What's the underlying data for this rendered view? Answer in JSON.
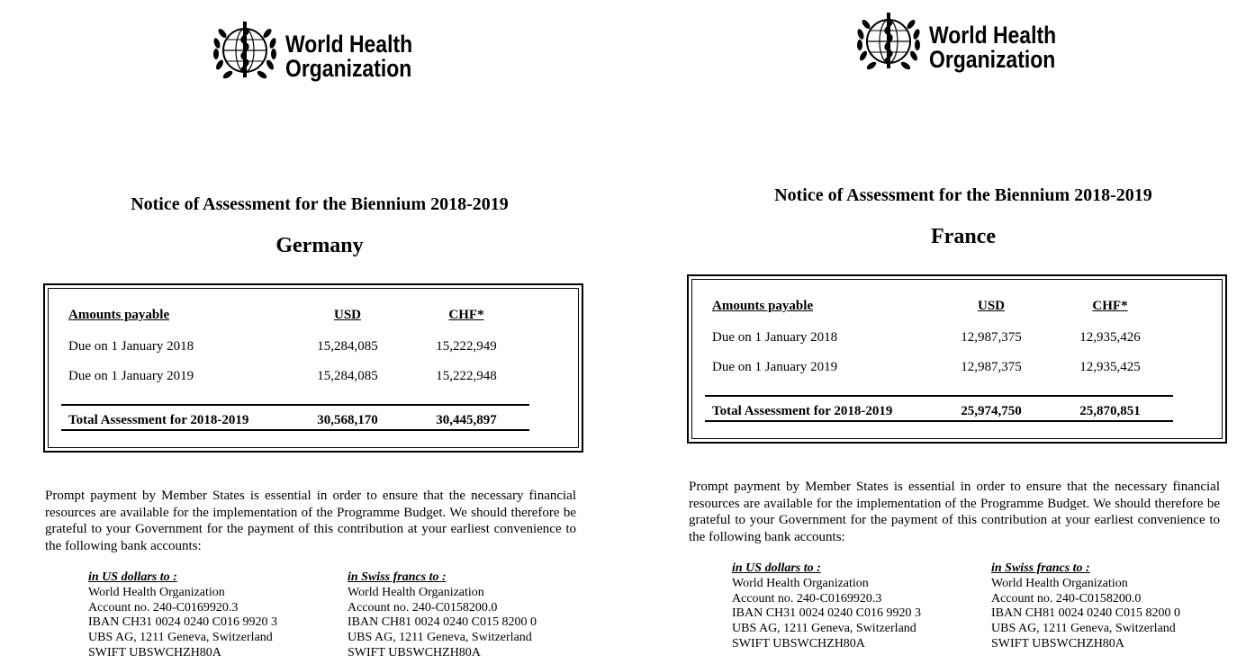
{
  "documents": [
    {
      "logo": {
        "line1": "World Health",
        "line2": "Organization"
      },
      "title": "Notice of Assessment for the Biennium 2018-2019",
      "country": "Germany",
      "table": {
        "header": [
          "Amounts payable",
          "USD",
          "CHF*"
        ],
        "rows": [
          [
            "Due on 1 January 2018",
            "15,284,085",
            "15,222,949"
          ],
          [
            "Due on 1 January 2019",
            "15,284,085",
            "15,222,948"
          ]
        ],
        "total": [
          "Total Assessment for 2018-2019",
          "30,568,170",
          "30,445,897"
        ]
      },
      "paragraph": "Prompt payment by Member States is essential in order to ensure that the necessary financial resources are available for the implementation of the Programme Budget. We should therefore be grateful to your Government for the payment of this contribution at your earliest convenience to the following bank accounts:",
      "accounts": [
        {
          "heading": "in US dollars to :",
          "lines": [
            "World Health Organization",
            "Account no. 240-C0169920.3",
            "IBAN CH31 0024 0240 C016 9920 3",
            "UBS AG, 1211 Geneva, Switzerland",
            "SWIFT UBSWCHZH80A"
          ]
        },
        {
          "heading": "in Swiss francs to :",
          "lines": [
            "World Health Organization",
            "Account no. 240-C0158200.0",
            "IBAN CH81 0024 0240 C015 8200 0",
            "UBS AG, 1211 Geneva, Switzerland",
            "SWIFT UBSWCHZH80A"
          ]
        }
      ]
    },
    {
      "logo": {
        "line1": "World Health",
        "line2": "Organization"
      },
      "title": "Notice of Assessment for the Biennium 2018-2019",
      "country": "France",
      "table": {
        "header": [
          "Amounts payable",
          "USD",
          "CHF*"
        ],
        "rows": [
          [
            "Due on 1 January 2018",
            "12,987,375",
            "12,935,426"
          ],
          [
            "Due on 1 January 2019",
            "12,987,375",
            "12,935,425"
          ]
        ],
        "total": [
          "Total Assessment for 2018-2019",
          "25,974,750",
          "25,870,851"
        ]
      },
      "paragraph": "Prompt payment by Member States is essential in order to ensure that the necessary financial resources are available for the implementation of the Programme Budget. We should therefore be grateful to your Government for the payment of this contribution at your earliest convenience to the following bank accounts:",
      "accounts": [
        {
          "heading": "in US dollars to :",
          "lines": [
            "World Health Organization",
            "Account no. 240-C0169920.3",
            "IBAN CH31 0024 0240 C016 9920 3",
            "UBS AG, 1211 Geneva, Switzerland",
            "SWIFT UBSWCHZH80A"
          ]
        },
        {
          "heading": "in Swiss francs to :",
          "lines": [
            "World Health Organization",
            "Account no. 240-C0158200.0",
            "IBAN CH81 0024 0240 C015 8200 0",
            "UBS AG, 1211 Geneva, Switzerland",
            "SWIFT UBSWCHZH80A"
          ]
        }
      ]
    }
  ]
}
